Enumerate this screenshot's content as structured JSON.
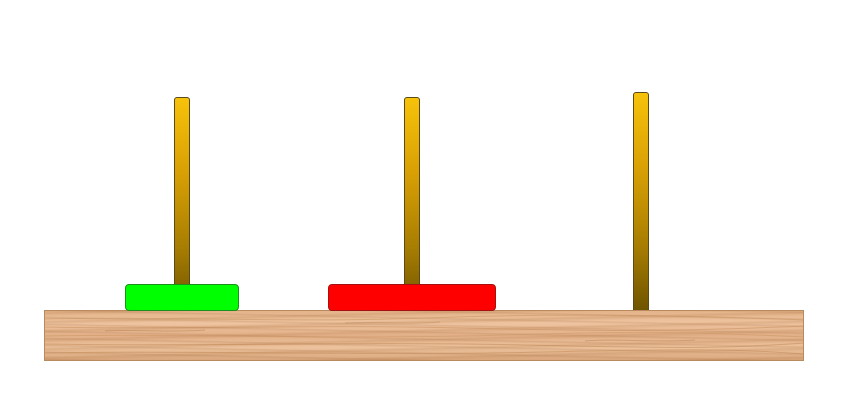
{
  "game": {
    "name": "",
    "pegs": [
      {
        "id": "peg-1",
        "disks": [
          "green"
        ]
      },
      {
        "id": "peg-2",
        "disks": [
          "red"
        ]
      },
      {
        "id": "peg-3",
        "disks": []
      }
    ]
  },
  "disks": {
    "green": {
      "color": "#00ff00"
    },
    "red": {
      "color": "#ff0000"
    }
  },
  "colors": {
    "peg_top": "#f7c20a",
    "peg_bottom": "#6e5400",
    "wood": "#e4b48a",
    "background": "#ffffff"
  }
}
